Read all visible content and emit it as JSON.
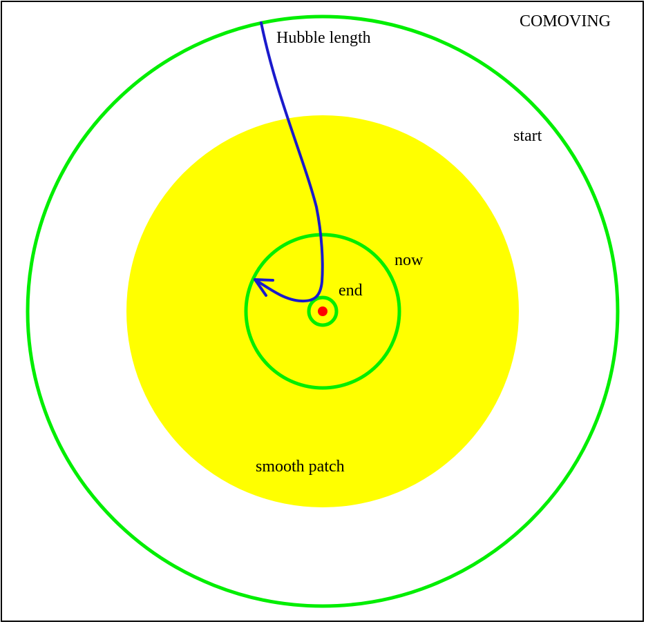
{
  "title": "COMOVING",
  "labels": {
    "hubble": "Hubble length",
    "start": "start",
    "now": "now",
    "end": "end",
    "patch": "smooth patch"
  },
  "colors": {
    "frame": "#000000",
    "horizon_circles": "#00ee00",
    "smooth_patch": "#ffff00",
    "hubble_curve": "#1a1acc",
    "center_dot": "#ff0000",
    "background": "#ffffff"
  }
}
